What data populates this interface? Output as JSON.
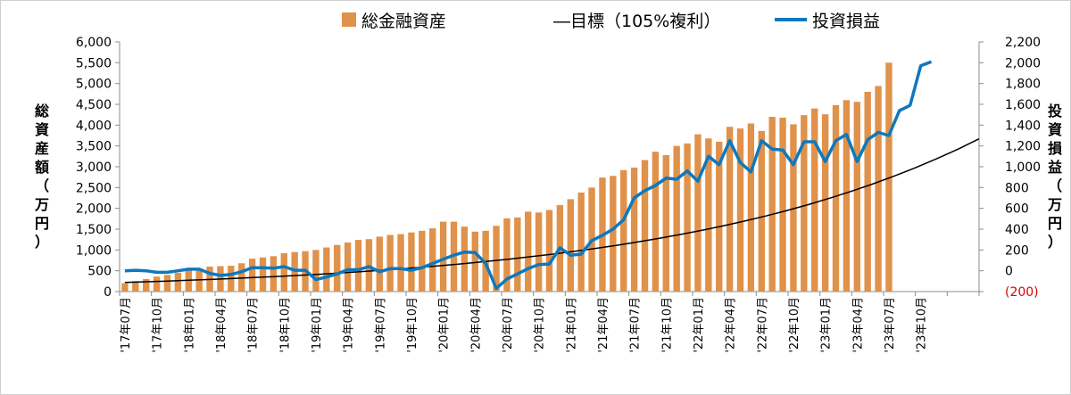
{
  "chart_data": {
    "type": "bar",
    "title": "",
    "legend": {
      "position": "top",
      "items": [
        "総金融資産",
        "―目標（105%複利）",
        "投資損益"
      ]
    },
    "ylabel_left": [
      "総",
      "資",
      "産",
      "額",
      "（",
      "万",
      "円",
      "）"
    ],
    "ylabel_right": [
      "投",
      "資",
      "損",
      "益",
      "（",
      "万",
      "円",
      "）"
    ],
    "y_left": {
      "range": [
        0,
        6000
      ],
      "ticks": [
        "0",
        "500",
        "1,000",
        "1,500",
        "2,000",
        "2,500",
        "3,000",
        "3,500",
        "4,000",
        "4,500",
        "5,000",
        "5,500",
        "6,000"
      ]
    },
    "y_right": {
      "range": [
        -200,
        2200
      ],
      "ticks": [
        "(200)",
        "0",
        "200",
        "400",
        "600",
        "800",
        "1,000",
        "1,200",
        "1,400",
        "1,600",
        "1,800",
        "2,000",
        "2,200"
      ]
    },
    "x_tick_labels": [
      "'17年07月",
      "'17年10月",
      "'18年01月",
      "'18年04月",
      "'18年07月",
      "'18年10月",
      "'19年01月",
      "'19年04月",
      "'19年07月",
      "'19年10月",
      "'20年01月",
      "'20年04月",
      "'20年07月",
      "'20年10月",
      "'21年01月",
      "'21年04月",
      "'21年07月",
      "'21年10月",
      "'22年01月",
      "'22年04月",
      "'22年07月",
      "'22年10月",
      "'23年01月",
      "'23年04月",
      "'23年07月",
      "'23年10月"
    ],
    "series": [
      {
        "name": "総金融資産",
        "type": "bar",
        "color": "#E0914A",
        "values": [
          200,
          250,
          300,
          360,
          400,
          450,
          520,
          560,
          600,
          610,
          620,
          680,
          790,
          820,
          850,
          920,
          950,
          970,
          1000,
          1060,
          1120,
          1180,
          1240,
          1260,
          1320,
          1360,
          1380,
          1420,
          1460,
          1520,
          1680,
          1680,
          1560,
          1440,
          1460,
          1580,
          1760,
          1780,
          1920,
          1900,
          1960,
          2080,
          2220,
          2380,
          2500,
          2740,
          2780,
          2920,
          2980,
          3160,
          3360,
          3280,
          3500,
          3560,
          3780,
          3680,
          3600,
          3960,
          3920,
          4040,
          3860,
          4200,
          4180,
          4020,
          4240,
          4400,
          4260,
          4480,
          4600,
          4560,
          4800,
          4940,
          5500
        ]
      },
      {
        "name": "投資損益",
        "type": "line",
        "color": "#0E78BE",
        "values": [
          0,
          5,
          0,
          -15,
          -15,
          0,
          15,
          15,
          -25,
          -45,
          -35,
          -10,
          30,
          30,
          25,
          40,
          5,
          5,
          -85,
          -60,
          -30,
          10,
          10,
          40,
          -10,
          20,
          20,
          5,
          30,
          70,
          110,
          150,
          180,
          175,
          70,
          -170,
          -80,
          -30,
          20,
          60,
          65,
          220,
          150,
          160,
          290,
          340,
          400,
          490,
          700,
          770,
          820,
          890,
          880,
          960,
          860,
          1100,
          1020,
          1250,
          1040,
          950,
          1250,
          1170,
          1160,
          1020,
          1240,
          1240,
          1050,
          1250,
          1310,
          1050,
          1260,
          1330,
          1300,
          1540,
          1590,
          1970,
          2010
        ]
      },
      {
        "name": "目標（105%複利）",
        "type": "line",
        "color": "#000000",
        "start_value": 220,
        "end_value": 3670
      }
    ]
  }
}
